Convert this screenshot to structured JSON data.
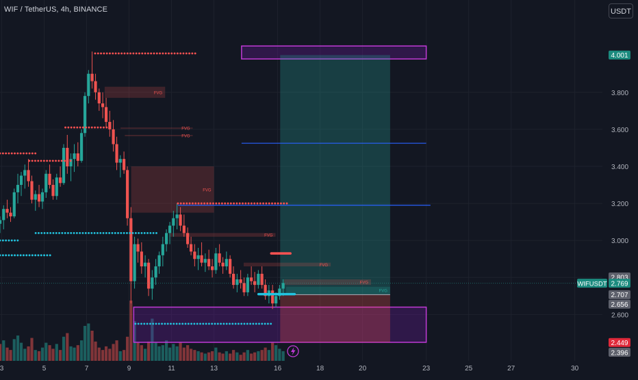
{
  "header": {
    "title": "WIF / TetherUS, 4h, BINANCE",
    "currency": "USDT"
  },
  "colors": {
    "background": "#131722",
    "grid": "#1e222d",
    "text": "#b2b5be",
    "up": "#26a69a",
    "down": "#ef5350",
    "fvg_bear": "#ef5350",
    "fvg_bull": "#26a69a",
    "zone_border": "#c13ad6",
    "zone_fill": "#6a1b9a",
    "level_line": "#2962ff",
    "dots_red": "#ff5252",
    "dots_cyan": "#22c4e0",
    "long_profit": "#26a69a",
    "long_stop": "#ef5350"
  },
  "chart_data": {
    "type": "candlestick",
    "symbol": "WIFUSDT",
    "timeframe": "4h",
    "ylim": [
      2.35,
      4.18
    ],
    "xlim": [
      2.92,
      31.3
    ],
    "y_ticks": [
      2.6,
      2.8,
      3.0,
      3.2,
      3.4,
      3.6,
      3.8
    ],
    "y_tick_labels": [
      "2.600",
      "2.800",
      "3.000",
      "3.200",
      "3.400",
      "3.600",
      "3.800"
    ],
    "x_ticks": [
      3,
      5,
      7,
      9,
      11,
      13,
      16,
      18,
      20,
      23,
      25,
      27,
      30
    ],
    "x_tick_labels": [
      "3",
      "5",
      "7",
      "9",
      "11",
      "13",
      "16",
      "18",
      "20",
      "23",
      "25",
      "27",
      "30"
    ],
    "price_labels": [
      {
        "text": "4.001",
        "value": 4.001,
        "kind": "green"
      },
      {
        "text": "2.803",
        "value": 2.803,
        "kind": "gray"
      },
      {
        "text": "WIFUSDT",
        "value": 2.769,
        "kind": "symbol"
      },
      {
        "text": "2.769",
        "value": 2.769,
        "kind": "green"
      },
      {
        "text": "2.707",
        "value": 2.707,
        "kind": "gray"
      },
      {
        "text": "2.656",
        "value": 2.656,
        "kind": "gray"
      },
      {
        "text": "2.449",
        "value": 2.449,
        "kind": "red"
      },
      {
        "text": "2.396",
        "value": 2.396,
        "kind": "gray"
      }
    ],
    "candles": [
      [
        2.92,
        3.09,
        3.13,
        3.04,
        3.11
      ],
      [
        3.09,
        3.11,
        3.19,
        3.06,
        3.17
      ],
      [
        3.26,
        3.17,
        3.22,
        3.12,
        3.15
      ],
      [
        3.42,
        3.15,
        3.18,
        3.1,
        3.13
      ],
      [
        3.59,
        3.13,
        3.28,
        3.12,
        3.26
      ],
      [
        3.76,
        3.26,
        3.36,
        3.2,
        3.3
      ],
      [
        3.92,
        3.3,
        3.37,
        3.24,
        3.35
      ],
      [
        4.09,
        3.35,
        3.41,
        3.28,
        3.38
      ],
      [
        4.26,
        3.38,
        3.44,
        3.29,
        3.32
      ],
      [
        4.42,
        3.32,
        3.35,
        3.2,
        3.22
      ],
      [
        4.59,
        3.22,
        3.27,
        3.16,
        3.25
      ],
      [
        4.76,
        3.25,
        3.3,
        3.18,
        3.21
      ],
      [
        4.92,
        3.21,
        3.28,
        3.17,
        3.26
      ],
      [
        5.09,
        3.26,
        3.38,
        3.23,
        3.36
      ],
      [
        5.26,
        3.36,
        3.41,
        3.28,
        3.3
      ],
      [
        5.42,
        3.3,
        3.33,
        3.22,
        3.24
      ],
      [
        5.59,
        3.24,
        3.36,
        3.22,
        3.34
      ],
      [
        5.76,
        3.34,
        3.4,
        3.29,
        3.31
      ],
      [
        5.92,
        3.31,
        3.52,
        3.3,
        3.5
      ],
      [
        6.09,
        3.5,
        3.57,
        3.36,
        3.4
      ],
      [
        6.26,
        3.4,
        3.47,
        3.32,
        3.44
      ],
      [
        6.42,
        3.44,
        3.52,
        3.37,
        3.47
      ],
      [
        6.59,
        3.47,
        3.53,
        3.4,
        3.43
      ],
      [
        6.76,
        3.43,
        3.6,
        3.42,
        3.58
      ],
      [
        6.92,
        3.58,
        3.8,
        3.56,
        3.78
      ],
      [
        7.09,
        3.78,
        3.92,
        3.74,
        3.9
      ],
      [
        7.26,
        3.9,
        4.02,
        3.82,
        3.86
      ],
      [
        7.42,
        3.86,
        3.9,
        3.76,
        3.8
      ],
      [
        7.59,
        3.8,
        3.82,
        3.7,
        3.74
      ],
      [
        7.76,
        3.74,
        3.8,
        3.66,
        3.72
      ],
      [
        7.92,
        3.72,
        3.77,
        3.61,
        3.64
      ],
      [
        8.09,
        3.64,
        3.7,
        3.56,
        3.6
      ],
      [
        8.26,
        3.6,
        3.65,
        3.48,
        3.52
      ],
      [
        8.42,
        3.52,
        3.56,
        3.38,
        3.42
      ],
      [
        8.59,
        3.42,
        3.46,
        3.34,
        3.44
      ],
      [
        8.76,
        3.44,
        3.48,
        3.36,
        3.38
      ],
      [
        8.92,
        3.38,
        3.4,
        3.08,
        3.12
      ],
      [
        9.09,
        3.12,
        3.18,
        2.66,
        2.78
      ],
      [
        9.26,
        2.78,
        3.02,
        2.74,
        2.98
      ],
      [
        9.42,
        2.98,
        3.01,
        2.88,
        2.94
      ],
      [
        9.59,
        2.94,
        2.99,
        2.82,
        2.86
      ],
      [
        9.76,
        2.86,
        2.92,
        2.8,
        2.88
      ],
      [
        9.92,
        2.88,
        2.9,
        2.7,
        2.74
      ],
      [
        10.09,
        2.74,
        2.84,
        2.68,
        2.8
      ],
      [
        10.26,
        2.8,
        2.9,
        2.76,
        2.86
      ],
      [
        10.42,
        2.86,
        2.94,
        2.82,
        2.92
      ],
      [
        10.59,
        2.92,
        3.02,
        2.86,
        2.98
      ],
      [
        10.76,
        2.98,
        3.06,
        2.94,
        3.04
      ],
      [
        10.92,
        3.04,
        3.1,
        2.98,
        3.08
      ],
      [
        11.09,
        3.08,
        3.16,
        3.02,
        3.12
      ],
      [
        11.26,
        3.12,
        3.2,
        3.06,
        3.14
      ],
      [
        11.42,
        3.14,
        3.18,
        3.05,
        3.08
      ],
      [
        11.59,
        3.08,
        3.14,
        3.02,
        3.04
      ],
      [
        11.76,
        3.04,
        3.07,
        2.96,
        2.98
      ],
      [
        11.92,
        2.98,
        3.02,
        2.92,
        2.94
      ],
      [
        12.09,
        2.94,
        2.98,
        2.86,
        2.9
      ],
      [
        12.26,
        2.9,
        2.96,
        2.84,
        2.92
      ],
      [
        12.42,
        2.92,
        2.99,
        2.86,
        2.88
      ],
      [
        12.59,
        2.88,
        2.93,
        2.83,
        2.9
      ],
      [
        12.76,
        2.9,
        2.95,
        2.84,
        2.86
      ],
      [
        12.92,
        2.86,
        2.9,
        2.8,
        2.84
      ],
      [
        13.09,
        2.84,
        2.96,
        2.82,
        2.93
      ],
      [
        13.26,
        2.93,
        2.98,
        2.86,
        2.88
      ],
      [
        13.42,
        2.88,
        2.91,
        2.82,
        2.86
      ],
      [
        13.59,
        2.86,
        2.94,
        2.84,
        2.9
      ],
      [
        13.76,
        2.9,
        2.92,
        2.8,
        2.82
      ],
      [
        13.92,
        2.82,
        2.86,
        2.74,
        2.76
      ],
      [
        14.09,
        2.76,
        2.82,
        2.72,
        2.79
      ],
      [
        14.26,
        2.79,
        2.84,
        2.74,
        2.77
      ],
      [
        14.42,
        2.77,
        2.8,
        2.7,
        2.72
      ],
      [
        14.59,
        2.72,
        2.82,
        2.7,
        2.8
      ],
      [
        14.76,
        2.8,
        2.86,
        2.76,
        2.78
      ],
      [
        14.92,
        2.78,
        2.83,
        2.72,
        2.76
      ],
      [
        15.09,
        2.76,
        2.84,
        2.74,
        2.82
      ],
      [
        15.26,
        2.82,
        2.86,
        2.74,
        2.76
      ],
      [
        15.42,
        2.76,
        2.79,
        2.68,
        2.7
      ],
      [
        15.59,
        2.7,
        2.76,
        2.66,
        2.73
      ],
      [
        15.76,
        2.73,
        2.76,
        2.63,
        2.66
      ],
      [
        15.92,
        2.66,
        2.72,
        2.64,
        2.7
      ],
      [
        16.09,
        2.7,
        2.76,
        2.68,
        2.74
      ],
      [
        16.26,
        2.74,
        2.79,
        2.7,
        2.77
      ]
    ],
    "volume_max": 100,
    "volume": [
      [
        2.92,
        28,
        "down"
      ],
      [
        3.09,
        34,
        "up"
      ],
      [
        3.26,
        22,
        "down"
      ],
      [
        3.42,
        18,
        "down"
      ],
      [
        3.59,
        36,
        "up"
      ],
      [
        3.76,
        42,
        "up"
      ],
      [
        3.92,
        30,
        "up"
      ],
      [
        4.09,
        20,
        "up"
      ],
      [
        4.26,
        24,
        "down"
      ],
      [
        4.42,
        38,
        "down"
      ],
      [
        4.59,
        18,
        "up"
      ],
      [
        4.76,
        16,
        "down"
      ],
      [
        4.92,
        22,
        "up"
      ],
      [
        5.09,
        30,
        "up"
      ],
      [
        5.26,
        26,
        "down"
      ],
      [
        5.42,
        20,
        "down"
      ],
      [
        5.59,
        28,
        "up"
      ],
      [
        5.76,
        18,
        "down"
      ],
      [
        5.92,
        40,
        "up"
      ],
      [
        6.09,
        46,
        "down"
      ],
      [
        6.26,
        24,
        "up"
      ],
      [
        6.42,
        22,
        "up"
      ],
      [
        6.59,
        26,
        "down"
      ],
      [
        6.76,
        34,
        "up"
      ],
      [
        6.92,
        58,
        "up"
      ],
      [
        7.09,
        62,
        "up"
      ],
      [
        7.26,
        50,
        "down"
      ],
      [
        7.42,
        32,
        "down"
      ],
      [
        7.59,
        22,
        "down"
      ],
      [
        7.76,
        18,
        "down"
      ],
      [
        7.92,
        24,
        "down"
      ],
      [
        8.09,
        20,
        "down"
      ],
      [
        8.26,
        28,
        "down"
      ],
      [
        8.42,
        34,
        "down"
      ],
      [
        8.59,
        16,
        "up"
      ],
      [
        8.76,
        18,
        "down"
      ],
      [
        8.92,
        40,
        "down"
      ],
      [
        9.09,
        100,
        "down"
      ],
      [
        9.26,
        66,
        "up"
      ],
      [
        9.42,
        30,
        "down"
      ],
      [
        9.59,
        26,
        "down"
      ],
      [
        9.76,
        20,
        "up"
      ],
      [
        9.92,
        32,
        "down"
      ],
      [
        10.09,
        70,
        "up"
      ],
      [
        10.26,
        30,
        "up"
      ],
      [
        10.42,
        24,
        "up"
      ],
      [
        10.59,
        26,
        "up"
      ],
      [
        10.76,
        34,
        "up"
      ],
      [
        10.92,
        22,
        "up"
      ],
      [
        11.09,
        28,
        "up"
      ],
      [
        11.26,
        24,
        "up"
      ],
      [
        11.42,
        30,
        "down"
      ],
      [
        11.59,
        22,
        "down"
      ],
      [
        11.76,
        26,
        "down"
      ],
      [
        11.92,
        20,
        "down"
      ],
      [
        12.09,
        18,
        "down"
      ],
      [
        12.26,
        16,
        "up"
      ],
      [
        12.42,
        14,
        "down"
      ],
      [
        12.59,
        12,
        "up"
      ],
      [
        12.76,
        14,
        "down"
      ],
      [
        12.92,
        16,
        "down"
      ],
      [
        13.09,
        22,
        "up"
      ],
      [
        13.26,
        14,
        "down"
      ],
      [
        13.42,
        12,
        "down"
      ],
      [
        13.59,
        16,
        "up"
      ],
      [
        13.76,
        12,
        "down"
      ],
      [
        13.92,
        18,
        "down"
      ],
      [
        14.09,
        14,
        "up"
      ],
      [
        14.26,
        10,
        "down"
      ],
      [
        14.42,
        14,
        "down"
      ],
      [
        14.59,
        18,
        "up"
      ],
      [
        14.76,
        12,
        "down"
      ],
      [
        14.92,
        14,
        "down"
      ],
      [
        15.09,
        16,
        "up"
      ],
      [
        15.26,
        18,
        "down"
      ],
      [
        15.42,
        22,
        "down"
      ],
      [
        15.59,
        18,
        "up"
      ],
      [
        15.76,
        30,
        "down"
      ],
      [
        15.92,
        26,
        "up"
      ],
      [
        16.09,
        20,
        "up"
      ],
      [
        16.26,
        16,
        "up"
      ]
    ],
    "zones": [
      {
        "x0": 14.3,
        "x1": 23.0,
        "y0": 3.98,
        "y1": 4.05
      },
      {
        "x0": 9.22,
        "x1": 23.0,
        "y0": 2.45,
        "y1": 2.64
      }
    ],
    "fvg_boxes": [
      {
        "x0": 7.85,
        "x1": 10.7,
        "y0": 3.77,
        "y1": 3.83,
        "label": "FVG",
        "kind": "bear"
      },
      {
        "x0": 8.6,
        "x1": 12.0,
        "y0": 3.61,
        "y1": 3.61,
        "label": "FVG",
        "kind": "bear"
      },
      {
        "x0": 8.8,
        "x1": 12.0,
        "y0": 3.57,
        "y1": 3.57,
        "label": "FVG",
        "kind": "bear"
      },
      {
        "x0": 9.1,
        "x1": 13.0,
        "y0": 3.15,
        "y1": 3.4,
        "label": "FVG",
        "kind": "bear"
      },
      {
        "x0": 10.9,
        "x1": 15.9,
        "y0": 3.02,
        "y1": 3.04,
        "label": "FVG",
        "kind": "bear"
      },
      {
        "x0": 14.4,
        "x1": 18.5,
        "y0": 2.86,
        "y1": 2.88,
        "label": "FVG",
        "kind": "bear"
      },
      {
        "x0": 16.3,
        "x1": 20.4,
        "y0": 2.76,
        "y1": 2.79,
        "label": "FVG",
        "kind": "bear"
      },
      {
        "x0": 16.4,
        "x1": 21.3,
        "y0": 2.71,
        "y1": 2.75,
        "label": "FVG",
        "kind": "bull"
      }
    ],
    "level_lines": [
      {
        "x0": 14.3,
        "x1": 23.0,
        "y": 3.525
      },
      {
        "x0": 11.3,
        "x1": 23.2,
        "y": 3.19
      }
    ],
    "dot_lines": [
      {
        "x0": 7.4,
        "x1": 12.2,
        "y": 4.01,
        "color": "red"
      },
      {
        "x0": 6.0,
        "x1": 8.1,
        "y": 3.61,
        "color": "red"
      },
      {
        "x0": 2.92,
        "x1": 4.6,
        "y": 3.47,
        "color": "red"
      },
      {
        "x0": 4.3,
        "x1": 6.3,
        "y": 3.43,
        "color": "red"
      },
      {
        "x0": 11.3,
        "x1": 16.5,
        "y": 3.2,
        "color": "red"
      },
      {
        "x0": 15.7,
        "x1": 16.6,
        "y": 2.93,
        "color": "red",
        "solid": true
      },
      {
        "x0": 2.92,
        "x1": 3.8,
        "y": 3.0,
        "color": "cyan"
      },
      {
        "x0": 2.92,
        "x1": 5.3,
        "y": 2.92,
        "color": "cyan"
      },
      {
        "x0": 4.6,
        "x1": 10.3,
        "y": 3.04,
        "color": "cyan"
      },
      {
        "x0": 9.3,
        "x1": 15.7,
        "y": 2.55,
        "color": "cyan"
      },
      {
        "x0": 15.1,
        "x1": 16.8,
        "y": 2.71,
        "color": "cyan",
        "solid": true
      }
    ],
    "position": {
      "x0": 16.12,
      "x1": 21.3,
      "entry": 2.707,
      "target": 4.001,
      "stop": 2.449
    },
    "last_price": 2.769
  }
}
